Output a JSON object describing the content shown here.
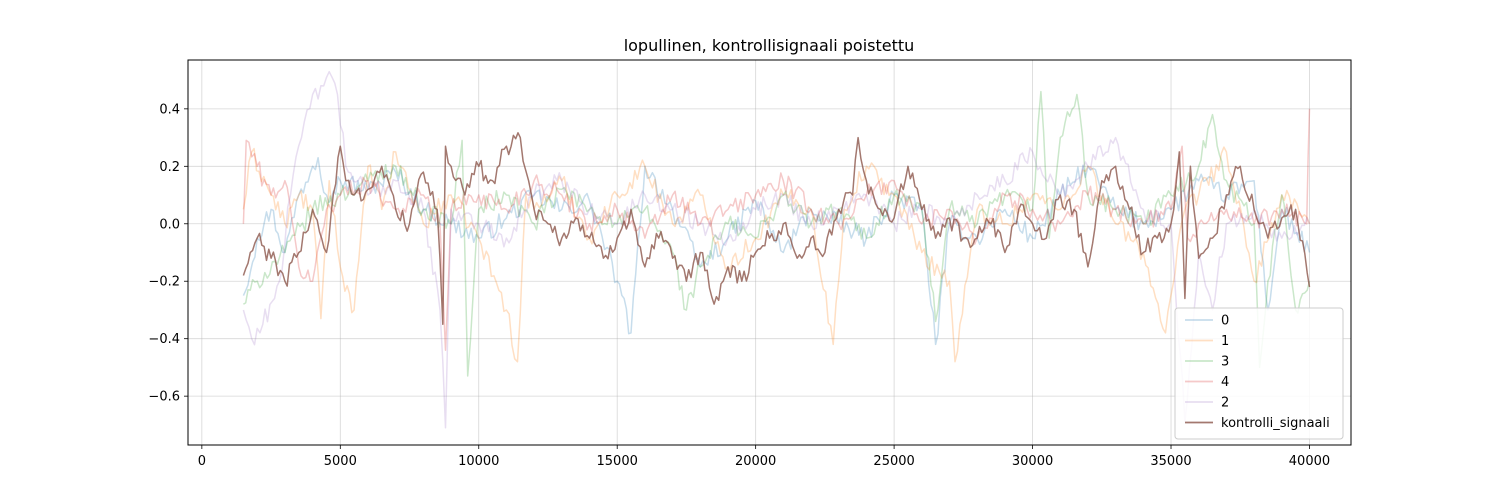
{
  "chart_data": {
    "type": "line",
    "title": "lopullinen, kontrollisignaali poistettu",
    "xlabel": "",
    "ylabel": "",
    "xlim": [
      -500,
      41500
    ],
    "ylim": [
      -0.77,
      0.57
    ],
    "xticks": [
      0,
      5000,
      10000,
      15000,
      20000,
      25000,
      30000,
      35000,
      40000
    ],
    "yticks": [
      -0.6,
      -0.4,
      -0.2,
      0.0,
      0.2,
      0.4
    ],
    "ytick_labels": [
      "−0.6",
      "−0.4",
      "−0.2",
      "0.0",
      "0.2",
      "0.4"
    ],
    "grid": true,
    "legend_position": "lower right",
    "series": [
      {
        "name": "0",
        "color": "#1f77b4",
        "opacity": 0.25,
        "x": [
          1500,
          2000,
          2500,
          3000,
          3500,
          4000,
          4200,
          4500,
          5000,
          6000,
          7000,
          8000,
          9000,
          10000,
          11000,
          12000,
          13000,
          14000,
          15000,
          15500,
          16000,
          17000,
          18000,
          19000,
          20000,
          21000,
          22000,
          23000,
          24000,
          25000,
          26000,
          26500,
          27000,
          28000,
          29000,
          30000,
          31000,
          32000,
          33000,
          34000,
          35000,
          36000,
          37000,
          38000,
          38500,
          39000,
          40000
        ],
        "y": [
          -0.25,
          -0.05,
          0.05,
          -0.1,
          0.1,
          0.2,
          0.23,
          0.1,
          0.15,
          0.12,
          0.18,
          0.05,
          0.0,
          -0.05,
          0.02,
          0.1,
          0.05,
          0.08,
          -0.2,
          -0.38,
          0.2,
          0.05,
          -0.15,
          -0.05,
          0.08,
          -0.1,
          0.05,
          0.0,
          -0.05,
          0.1,
          0.05,
          -0.42,
          0.0,
          -0.05,
          0.05,
          -0.05,
          0.1,
          0.2,
          0.05,
          0.0,
          0.05,
          0.15,
          0.1,
          0.15,
          -0.3,
          0.05,
          -0.1
        ]
      },
      {
        "name": "1",
        "color": "#ff7f0e",
        "opacity": 0.25,
        "x": [
          1500,
          1800,
          2500,
          3000,
          3500,
          4000,
          4300,
          4600,
          5000,
          5500,
          6000,
          6500,
          7000,
          8000,
          9000,
          10000,
          11000,
          11400,
          11700,
          12000,
          13000,
          14000,
          15000,
          16000,
          17000,
          18000,
          19000,
          20000,
          21000,
          22000,
          22800,
          23200,
          24000,
          25000,
          26000,
          27000,
          27200,
          28000,
          29000,
          30000,
          31000,
          32000,
          33000,
          34000,
          34800,
          35500,
          36000,
          37000,
          38000,
          39000,
          40000
        ],
        "y": [
          0.05,
          0.25,
          0.1,
          0.0,
          0.1,
          0.05,
          -0.33,
          0.15,
          -0.15,
          -0.3,
          0.2,
          0.05,
          0.25,
          0.0,
          0.1,
          -0.05,
          -0.3,
          -0.48,
          0.1,
          0.05,
          0.15,
          -0.05,
          0.1,
          0.2,
          0.0,
          0.1,
          -0.15,
          -0.05,
          0.1,
          0.05,
          -0.42,
          0.05,
          0.2,
          0.1,
          -0.1,
          -0.2,
          -0.48,
          0.05,
          0.0,
          0.1,
          0.05,
          0.2,
          0.0,
          -0.1,
          -0.38,
          0.05,
          0.1,
          0.25,
          -0.2,
          0.1,
          0.0
        ]
      },
      {
        "name": "3",
        "color": "#2ca02c",
        "opacity": 0.25,
        "x": [
          1500,
          2000,
          3000,
          4000,
          5000,
          6000,
          7000,
          8000,
          9000,
          9400,
          9600,
          10000,
          11000,
          12000,
          13000,
          14000,
          15000,
          16000,
          17000,
          17500,
          18000,
          19000,
          20000,
          21000,
          22000,
          23000,
          24000,
          25000,
          26000,
          26500,
          27000,
          28000,
          29000,
          30000,
          30300,
          30600,
          31000,
          31600,
          32000,
          33000,
          34000,
          35000,
          36000,
          36500,
          37000,
          38000,
          38200,
          38500,
          39000,
          39500,
          40000
        ],
        "y": [
          -0.28,
          -0.2,
          -0.1,
          0.05,
          0.1,
          0.15,
          0.2,
          0.05,
          0.0,
          0.29,
          -0.53,
          0.05,
          0.1,
          0.0,
          0.12,
          0.05,
          0.0,
          0.05,
          -0.1,
          -0.3,
          -0.15,
          0.0,
          -0.05,
          0.1,
          0.0,
          0.05,
          -0.05,
          0.1,
          0.05,
          -0.34,
          0.05,
          0.0,
          0.1,
          0.05,
          0.46,
          -0.05,
          0.3,
          0.45,
          0.1,
          0.05,
          0.0,
          0.1,
          0.2,
          0.38,
          0.15,
          0.0,
          -0.5,
          -0.2,
          0.1,
          -0.3,
          -0.2
        ]
      },
      {
        "name": "4",
        "color": "#d62728",
        "opacity": 0.25,
        "x": [
          1500,
          1600,
          2000,
          2500,
          3000,
          3500,
          4000,
          4500,
          5000,
          6000,
          7000,
          8000,
          8600,
          8800,
          9000,
          10000,
          11000,
          12000,
          13000,
          14000,
          15000,
          16000,
          17000,
          18000,
          19000,
          20000,
          21000,
          22000,
          23000,
          24000,
          25000,
          26000,
          27000,
          28000,
          29000,
          30000,
          31000,
          32000,
          33000,
          34000,
          35000,
          35400,
          35600,
          36000,
          37000,
          38000,
          39000,
          39900,
          40000
        ],
        "y": [
          0.0,
          0.29,
          0.2,
          0.1,
          0.15,
          -0.15,
          -0.2,
          0.05,
          0.1,
          0.15,
          0.05,
          0.1,
          0.0,
          -0.44,
          0.05,
          0.1,
          0.05,
          0.15,
          0.1,
          0.0,
          0.05,
          -0.05,
          0.1,
          0.0,
          0.05,
          0.1,
          0.15,
          0.05,
          0.0,
          0.1,
          0.15,
          0.0,
          0.05,
          -0.05,
          0.1,
          0.05,
          0.0,
          0.1,
          0.05,
          0.0,
          0.05,
          0.27,
          -0.05,
          0.0,
          0.05,
          0.0,
          0.05,
          0.0,
          0.4
        ]
      },
      {
        "name": "2",
        "color": "#9467bd",
        "opacity": 0.22,
        "x": [
          1500,
          1800,
          2200,
          2800,
          3200,
          3600,
          4000,
          4400,
          4700,
          4900,
          5200,
          6000,
          7000,
          8000,
          8600,
          8800,
          9000,
          10000,
          11000,
          12000,
          13000,
          14000,
          15000,
          16000,
          17000,
          18000,
          19000,
          20000,
          21000,
          22000,
          23000,
          24000,
          25000,
          26000,
          27000,
          28000,
          29000,
          30000,
          31000,
          32000,
          33000,
          34000,
          35000,
          35500,
          36000,
          36500,
          37000,
          38000,
          39000,
          40000
        ],
        "y": [
          -0.3,
          -0.4,
          -0.35,
          -0.2,
          0.1,
          0.3,
          0.45,
          0.48,
          0.51,
          0.45,
          0.2,
          0.1,
          0.15,
          0.05,
          -0.3,
          -0.71,
          0.05,
          0.0,
          -0.05,
          0.1,
          0.15,
          0.05,
          0.0,
          0.1,
          0.05,
          0.0,
          -0.05,
          0.05,
          0.1,
          0.0,
          0.05,
          0.1,
          0.0,
          0.05,
          0.0,
          0.1,
          0.15,
          0.25,
          0.1,
          0.2,
          0.3,
          0.05,
          0.0,
          -0.69,
          -0.1,
          -0.3,
          0.0,
          0.05,
          -0.05,
          0.0
        ]
      },
      {
        "name": "kontrolli_signaali",
        "color": "#8c564b",
        "opacity": 0.8,
        "x": [
          1500,
          2000,
          2500,
          3000,
          3500,
          4000,
          4500,
          5000,
          5200,
          5500,
          6000,
          6500,
          7000,
          7500,
          8000,
          8500,
          8700,
          8800,
          9000,
          9500,
          10000,
          10500,
          11000,
          11500,
          11800,
          12000,
          12500,
          13000,
          13500,
          14000,
          14500,
          15000,
          15500,
          16000,
          16500,
          17000,
          17500,
          18000,
          18500,
          19000,
          19500,
          20000,
          20500,
          21000,
          21500,
          22000,
          22500,
          23000,
          23500,
          23700,
          24000,
          24500,
          25000,
          25500,
          26000,
          26500,
          27000,
          27500,
          28000,
          28500,
          29000,
          29500,
          30000,
          30500,
          31000,
          31500,
          32000,
          32500,
          33000,
          33500,
          34000,
          34500,
          35000,
          35300,
          35500,
          35700,
          36000,
          36500,
          37000,
          37500,
          38000,
          38500,
          39000,
          39500,
          40000
        ],
        "y": [
          -0.18,
          -0.05,
          -0.12,
          -0.2,
          -0.1,
          0.05,
          -0.1,
          0.27,
          0.15,
          0.1,
          0.12,
          0.2,
          0.05,
          0.0,
          0.18,
          0.05,
          -0.35,
          0.27,
          0.2,
          0.1,
          0.2,
          0.15,
          0.27,
          0.3,
          0.15,
          0.05,
          0.0,
          -0.05,
          0.02,
          -0.05,
          -0.12,
          -0.05,
          0.05,
          -0.15,
          -0.05,
          -0.12,
          -0.2,
          -0.1,
          -0.28,
          -0.15,
          -0.2,
          -0.1,
          -0.05,
          0.0,
          -0.12,
          -0.05,
          -0.1,
          0.05,
          0.1,
          0.3,
          0.15,
          0.05,
          0.02,
          0.2,
          0.05,
          -0.05,
          0.02,
          -0.05,
          -0.05,
          0.0,
          -0.1,
          0.05,
          0.0,
          -0.05,
          0.1,
          0.05,
          -0.15,
          0.15,
          0.2,
          0.05,
          -0.1,
          -0.05,
          0.0,
          0.25,
          -0.26,
          0.2,
          -0.12,
          -0.05,
          0.1,
          0.2,
          0.05,
          -0.05,
          0.02,
          0.05,
          -0.22
        ]
      }
    ]
  }
}
